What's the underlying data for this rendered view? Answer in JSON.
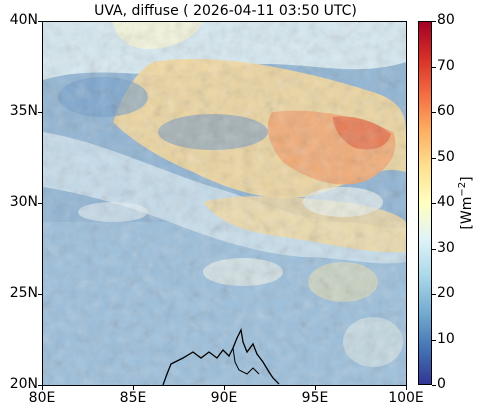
{
  "title": "UVA, diffuse ( 2026-04-11 03:50 UTC)",
  "map": {
    "x_ticks": [
      "80E",
      "85E",
      "90E",
      "95E",
      "100E"
    ],
    "y_ticks": [
      "20N",
      "25N",
      "30N",
      "35N",
      "40N"
    ],
    "lon_range": [
      80,
      100
    ],
    "lat_range": [
      20,
      40
    ]
  },
  "colorbar": {
    "ticks": [
      "0",
      "10",
      "20",
      "30",
      "40",
      "50",
      "60",
      "70",
      "80"
    ],
    "range": [
      0,
      80
    ],
    "label_main": "[Wm",
    "label_sup": "−2",
    "label_close": "]",
    "colormap": "RdYlBu_r"
  },
  "colors": {
    "low": "#313695",
    "mid": "#ffffbf",
    "high": "#a50026",
    "background_field": "#8fb4d4",
    "coastline": "#000000"
  }
}
